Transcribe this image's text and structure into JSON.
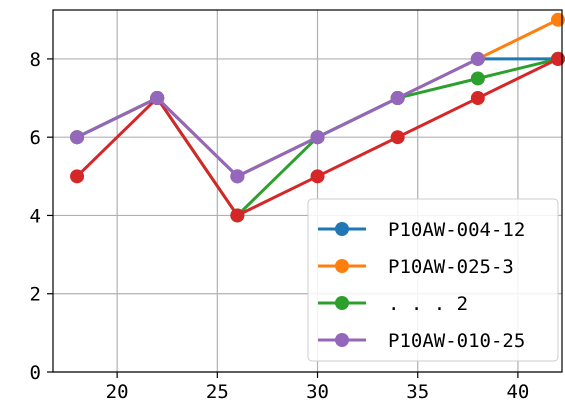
{
  "chart_data": {
    "type": "line",
    "title": "",
    "xlabel": "",
    "ylabel": "",
    "xlim": [
      16.8,
      42.2
    ],
    "ylim": [
      0,
      9.25
    ],
    "x_ticks": [
      20,
      25,
      30,
      35,
      40
    ],
    "y_ticks": [
      0,
      2,
      4,
      6,
      8
    ],
    "x_tick_labels": [
      "20",
      "25",
      "30",
      "35",
      "40"
    ],
    "y_tick_labels": [
      "0",
      "2",
      "4",
      "6",
      "8"
    ],
    "grid": true,
    "legend_position": "lower-right",
    "series": [
      {
        "name": "P10AW-004-12",
        "color": "#1f77b4",
        "x": [
          18,
          22,
          26,
          30,
          34,
          38,
          42
        ],
        "y": [
          6,
          7,
          5,
          6,
          7,
          8,
          8
        ]
      },
      {
        "name": "P10AW-025-3",
        "color": "#ff7f0e",
        "x": [
          18,
          22,
          26,
          30,
          34,
          38,
          42
        ],
        "y": [
          6,
          7,
          5,
          6,
          7,
          8,
          9
        ]
      },
      {
        "name": ". . .  2",
        "color": "#2ca02c",
        "x": [
          18,
          22,
          26,
          30,
          34,
          38,
          42
        ],
        "y": [
          6,
          7,
          4,
          6,
          7,
          7.5,
          8
        ]
      },
      {
        "name": "",
        "color": "#d62728",
        "x": [
          18,
          22,
          26,
          30,
          34,
          38,
          42
        ],
        "y": [
          5,
          7,
          4,
          5,
          6,
          7,
          8
        ]
      },
      {
        "name": "P10AW-010-25",
        "color": "#9467bd",
        "x": [
          18,
          22,
          26,
          30,
          34,
          38
        ],
        "y": [
          6,
          7,
          5,
          6,
          7,
          8
        ]
      }
    ],
    "legend_order": [
      0,
      1,
      2,
      4
    ]
  }
}
